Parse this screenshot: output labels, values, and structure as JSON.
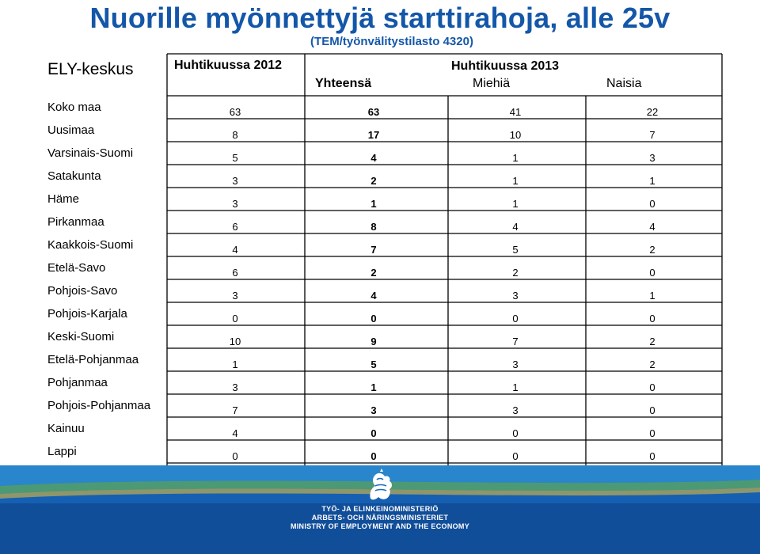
{
  "title": "Nuorille myönnettyjä starttirahoja, alle 25v",
  "subtitle": "(TEM/työnvälitystilasto 4320)",
  "table": {
    "corner_label": "ELY-keskus",
    "col_2012": "Huhtikuussa 2012",
    "col_2013": "Huhtikuussa 2013",
    "sub_total": "Yhteensä",
    "sub_men": "Miehiä",
    "sub_women": "Naisia",
    "rows": [
      {
        "region": "Koko maa",
        "y2012": "63",
        "total": "63",
        "men": "41",
        "women": "22"
      },
      {
        "region": "Uusimaa",
        "y2012": "8",
        "total": "17",
        "men": "10",
        "women": "7"
      },
      {
        "region": "Varsinais-Suomi",
        "y2012": "5",
        "total": "4",
        "men": "1",
        "women": "3"
      },
      {
        "region": "Satakunta",
        "y2012": "3",
        "total": "2",
        "men": "1",
        "women": "1"
      },
      {
        "region": "Häme",
        "y2012": "3",
        "total": "1",
        "men": "1",
        "women": "0"
      },
      {
        "region": "Pirkanmaa",
        "y2012": "6",
        "total": "8",
        "men": "4",
        "women": "4"
      },
      {
        "region": "Kaakkois-Suomi",
        "y2012": "4",
        "total": "7",
        "men": "5",
        "women": "2"
      },
      {
        "region": "Etelä-Savo",
        "y2012": "6",
        "total": "2",
        "men": "2",
        "women": "0"
      },
      {
        "region": "Pohjois-Savo",
        "y2012": "3",
        "total": "4",
        "men": "3",
        "women": "1"
      },
      {
        "region": "Pohjois-Karjala",
        "y2012": "0",
        "total": "0",
        "men": "0",
        "women": "0"
      },
      {
        "region": "Keski-Suomi",
        "y2012": "10",
        "total": "9",
        "men": "7",
        "women": "2"
      },
      {
        "region": "Etelä-Pohjanmaa",
        "y2012": "1",
        "total": "5",
        "men": "3",
        "women": "2"
      },
      {
        "region": "Pohjanmaa",
        "y2012": "3",
        "total": "1",
        "men": "1",
        "women": "0"
      },
      {
        "region": "Pohjois-Pohjanmaa",
        "y2012": "7",
        "total": "3",
        "men": "3",
        "women": "0"
      },
      {
        "region": "Kainuu",
        "y2012": "4",
        "total": "0",
        "men": "0",
        "women": "0"
      },
      {
        "region": "Lappi",
        "y2012": "0",
        "total": "0",
        "men": "0",
        "women": "0"
      }
    ]
  },
  "footer": {
    "logo_icon": "finnish-lion-icon",
    "line1": "TYÖ- JA ELINKEINOMINISTERIÖ",
    "line2": "ARBETS- OCH NÄRINGSMINISTERIET",
    "line3": "MINISTRY OF EMPLOYMENT AND THE ECONOMY",
    "band_colors": [
      "#0a2d6b",
      "#1660b3",
      "#3aa6e0",
      "#7ac943",
      "#f2c230"
    ]
  }
}
